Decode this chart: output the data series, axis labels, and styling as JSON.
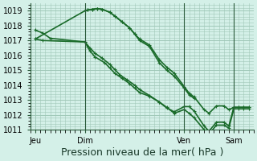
{
  "bg_color": "#d4f0e8",
  "grid_color": "#a0c8b8",
  "line_color": "#1a6b2a",
  "marker_color": "#1a6b2a",
  "xlabel": "Pression niveau de la mer( hPa )",
  "xlabel_fontsize": 9,
  "ylim": [
    1011,
    1019.5
  ],
  "yticks": [
    1011,
    1012,
    1013,
    1014,
    1015,
    1016,
    1017,
    1018,
    1019
  ],
  "tick_fontsize": 7,
  "xtick_labels": [
    "Jeu",
    "Dim",
    "Ven",
    "Sam"
  ],
  "xtick_positions": [
    0,
    1,
    3,
    4
  ],
  "series": [
    {
      "x": [
        0,
        0.15,
        0.3,
        1.0,
        1.1,
        1.2,
        1.35,
        1.5,
        1.6,
        1.7,
        1.85,
        2.0,
        2.1,
        2.3,
        2.5,
        2.65,
        2.8,
        3.0,
        3.1,
        3.2,
        3.4,
        3.5,
        3.65,
        3.8,
        3.9,
        4.0,
        4.1,
        4.2,
        4.3
      ],
      "y": [
        1017.7,
        1017.5,
        1017.15,
        1016.9,
        1016.5,
        1016.15,
        1015.8,
        1015.4,
        1015.05,
        1014.7,
        1014.35,
        1014.0,
        1013.7,
        1013.3,
        1012.85,
        1012.45,
        1012.2,
        1012.55,
        1012.55,
        1012.25,
        1011.25,
        1010.9,
        1011.5,
        1011.5,
        1011.25,
        1012.5,
        1012.5,
        1012.5,
        1012.5
      ]
    },
    {
      "x": [
        0,
        0.15,
        1.0,
        1.05,
        1.1,
        1.2,
        1.4,
        1.5,
        1.6,
        1.75,
        1.9,
        2.0,
        2.1,
        2.3,
        2.5,
        2.65,
        2.8,
        3.0,
        3.1,
        3.2,
        3.4,
        3.5,
        3.65,
        3.8,
        3.9,
        4.0,
        4.1,
        4.2,
        4.3
      ],
      "y": [
        1017.1,
        1017.0,
        1016.9,
        1016.6,
        1016.3,
        1015.9,
        1015.5,
        1015.15,
        1014.8,
        1014.45,
        1014.1,
        1013.8,
        1013.5,
        1013.25,
        1012.85,
        1012.5,
        1012.1,
        1012.35,
        1012.1,
        1011.8,
        1011.0,
        1010.7,
        1011.3,
        1011.3,
        1011.1,
        1012.4,
        1012.4,
        1012.4,
        1012.4
      ]
    },
    {
      "x": [
        0,
        1.0,
        1.05,
        1.15,
        1.25,
        1.35,
        1.5,
        1.6,
        1.75,
        1.9,
        2.0,
        2.1,
        2.3,
        2.5,
        2.65,
        2.8,
        3.0,
        3.1,
        3.2
      ],
      "y": [
        1017.1,
        1019.0,
        1019.05,
        1019.1,
        1019.15,
        1019.1,
        1018.9,
        1018.65,
        1018.25,
        1017.85,
        1017.45,
        1017.0,
        1016.6,
        1015.5,
        1015.0,
        1014.6,
        1013.8,
        1013.35,
        1013.1
      ]
    },
    {
      "x": [
        1.0,
        1.05,
        1.15,
        1.25,
        1.35,
        1.5,
        1.6,
        1.75,
        1.9,
        2.0,
        2.1,
        2.3,
        2.5,
        2.65,
        2.8,
        3.0,
        3.1,
        3.2,
        3.4,
        3.5,
        3.65,
        3.8,
        3.9,
        4.0,
        4.1,
        4.2,
        4.3
      ],
      "y": [
        1019.0,
        1019.05,
        1019.1,
        1019.15,
        1019.1,
        1018.9,
        1018.65,
        1018.25,
        1017.85,
        1017.45,
        1017.1,
        1016.7,
        1015.7,
        1015.2,
        1014.8,
        1013.9,
        1013.45,
        1013.2,
        1012.35,
        1012.1,
        1012.6,
        1012.6,
        1012.35,
        1012.5,
        1012.5,
        1012.5,
        1012.5
      ]
    }
  ]
}
